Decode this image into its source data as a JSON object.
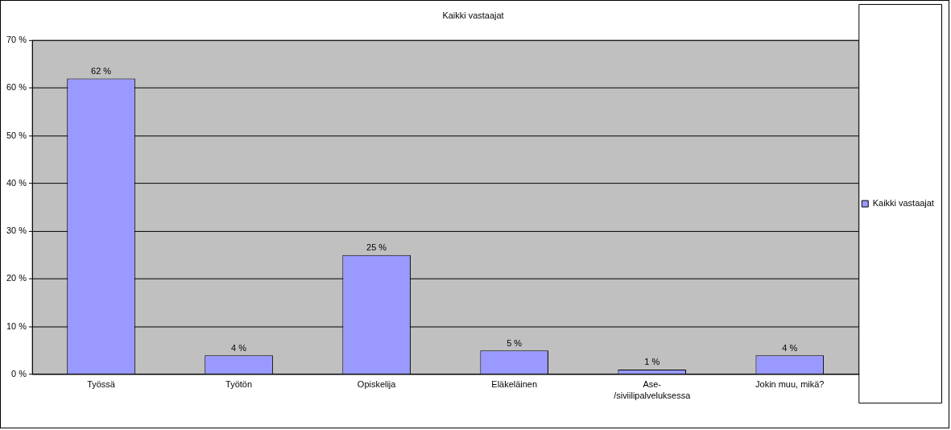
{
  "chart_data": {
    "type": "bar",
    "title": "Kaikki vastaajat",
    "categories": [
      "Työssä",
      "Työtön",
      "Opiskelija",
      "Eläkeläinen",
      "Ase-/siviilipalveluksessa",
      "Jokin muu, mikä?"
    ],
    "series": [
      {
        "name": "Kaikki vastaajat",
        "color": "#9999ff",
        "values": [
          62,
          4,
          25,
          5,
          1,
          4
        ],
        "value_labels": [
          "62 %",
          "4 %",
          "25 %",
          "5 %",
          "1 %",
          "4 %"
        ]
      }
    ],
    "ylim": [
      0,
      70
    ],
    "yticks": [
      {
        "value": 0,
        "label": "0 %"
      },
      {
        "value": 10,
        "label": "10 %"
      },
      {
        "value": 20,
        "label": "20 %"
      },
      {
        "value": 30,
        "label": "30 %"
      },
      {
        "value": 40,
        "label": "40 %"
      },
      {
        "value": 50,
        "label": "50 %"
      },
      {
        "value": 60,
        "label": "60 %"
      },
      {
        "value": 70,
        "label": "70 %"
      }
    ],
    "grid": "y",
    "legend": "right"
  }
}
